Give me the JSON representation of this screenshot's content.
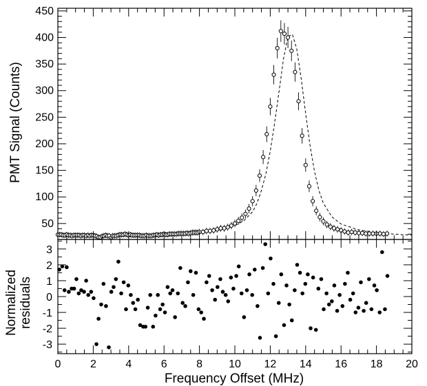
{
  "chart_data": [
    {
      "type": "scatter",
      "ylabel": "PMT Signal (Counts)",
      "xlim": [
        0,
        20
      ],
      "ylim": [
        20,
        455
      ],
      "yticks": [
        50,
        100,
        150,
        200,
        250,
        300,
        350,
        400,
        450
      ],
      "grid": false,
      "legend": "none",
      "series": [
        {
          "marker": "open-circle-with-errorbars",
          "x": [
            0.0,
            0.1,
            0.2,
            0.3,
            0.4,
            0.5,
            0.6,
            0.7,
            0.8,
            0.9,
            1.0,
            1.1,
            1.2,
            1.3,
            1.4,
            1.5,
            1.6,
            1.7,
            1.8,
            1.9,
            2.0,
            2.1,
            2.2,
            2.3,
            2.4,
            2.5,
            2.6,
            2.7,
            2.8,
            2.9,
            3.0,
            3.1,
            3.2,
            3.3,
            3.4,
            3.5,
            3.6,
            3.7,
            3.8,
            3.9,
            4.0,
            4.1,
            4.2,
            4.3,
            4.4,
            4.5,
            4.6,
            4.7,
            4.8,
            4.9,
            5.0,
            5.1,
            5.2,
            5.3,
            5.4,
            5.5,
            5.6,
            5.7,
            5.8,
            5.9,
            6.0,
            6.1,
            6.2,
            6.3,
            6.4,
            6.5,
            6.6,
            6.7,
            6.8,
            6.9,
            7.0,
            7.1,
            7.2,
            7.3,
            7.4,
            7.5,
            7.6,
            7.7,
            7.8,
            7.9,
            8.0,
            8.2,
            8.4,
            8.6,
            8.8,
            9.0,
            9.2,
            9.4,
            9.6,
            9.8,
            10.0,
            10.2,
            10.4,
            10.6,
            10.8,
            11.0,
            11.2,
            11.4,
            11.6,
            11.8,
            12.0,
            12.2,
            12.4,
            12.6,
            12.8,
            13.0,
            13.2,
            13.4,
            13.6,
            13.8,
            14.0,
            14.2,
            14.4,
            14.6,
            14.8,
            15.0,
            15.2,
            15.4,
            15.6,
            15.8,
            16.0,
            16.2,
            16.4,
            16.6,
            16.8,
            17.0,
            17.2,
            17.4,
            17.6,
            17.8,
            18.0,
            18.2,
            18.4,
            18.6
          ],
          "y": [
            29,
            29,
            29,
            28,
            28,
            29,
            28,
            28,
            27,
            28,
            28,
            28,
            28,
            27,
            28,
            28,
            27,
            28,
            27,
            28,
            28,
            27,
            26,
            24,
            24,
            26,
            27,
            28,
            27,
            27,
            23,
            27,
            27,
            27,
            28,
            29,
            29,
            29,
            30,
            29,
            28,
            29,
            28,
            28,
            28,
            28,
            28,
            27,
            27,
            27,
            28,
            27,
            27,
            27,
            28,
            28,
            29,
            28,
            29,
            29,
            30,
            29,
            29,
            30,
            30,
            30,
            30,
            30,
            31,
            31,
            31,
            31,
            31,
            32,
            31,
            32,
            33,
            33,
            33,
            33,
            34,
            34,
            36,
            36,
            37,
            39,
            41,
            41,
            43,
            46,
            50,
            55,
            61,
            68,
            78,
            92,
            112,
            140,
            175,
            218,
            270,
            330,
            380,
            412,
            407,
            400,
            375,
            335,
            280,
            215,
            160,
            120,
            92,
            74,
            62,
            54,
            48,
            44,
            41,
            39,
            37,
            35,
            33,
            34,
            33,
            32,
            32,
            31,
            31,
            31,
            31,
            31,
            30,
            31
          ]
        },
        {
          "line_style": "dashed",
          "x": [
            0,
            2,
            4,
            6,
            7,
            8,
            9,
            9.5,
            10,
            10.5,
            11,
            11.25,
            11.5,
            11.75,
            12,
            12.25,
            12.5,
            12.75,
            13,
            13.25,
            13.5,
            13.75,
            14,
            14.25,
            14.5,
            14.75,
            15,
            15.5,
            16,
            17,
            18,
            19,
            20
          ],
          "y": [
            27,
            27.5,
            28,
            29.5,
            31,
            33,
            37,
            40,
            46,
            55,
            72,
            88,
            112,
            143,
            186,
            240,
            299,
            360,
            402,
            406,
            378,
            322,
            257,
            196,
            148,
            112,
            88,
            62,
            49,
            38,
            33,
            30,
            28
          ]
        }
      ]
    },
    {
      "type": "scatter",
      "ylabel": "Normalized residuals",
      "xlabel": "Frequency Offset (MHz)",
      "xlim": [
        0,
        20
      ],
      "ylim": [
        -3.6,
        3.6
      ],
      "xticks": [
        0,
        2,
        4,
        6,
        8,
        10,
        12,
        14,
        16,
        18,
        20
      ],
      "yticks": [
        -3,
        -2,
        -1,
        0,
        1,
        2,
        3
      ],
      "grid": false,
      "legend": "none",
      "series": [
        {
          "marker": "filled-circle",
          "x": [
            0.08,
            0.25,
            0.38,
            0.5,
            0.62,
            0.78,
            0.92,
            1.05,
            1.18,
            1.32,
            1.48,
            1.6,
            1.72,
            1.88,
            2.02,
            2.18,
            2.3,
            2.45,
            2.58,
            2.72,
            2.88,
            3.02,
            3.15,
            3.28,
            3.42,
            3.58,
            3.72,
            3.85,
            3.98,
            4.12,
            4.25,
            4.38,
            4.52,
            4.65,
            4.82,
            4.95,
            5.08,
            5.22,
            5.38,
            5.52,
            5.65,
            5.78,
            5.92,
            6.05,
            6.2,
            6.35,
            6.48,
            6.62,
            6.78,
            6.92,
            7.05,
            7.2,
            7.35,
            7.5,
            7.65,
            7.8,
            7.95,
            8.1,
            8.25,
            8.4,
            8.55,
            8.72,
            8.88,
            9.02,
            9.18,
            9.32,
            9.48,
            9.62,
            9.78,
            9.92,
            10.08,
            10.22,
            10.38,
            10.52,
            10.68,
            10.82,
            10.98,
            11.12,
            11.28,
            11.42,
            11.58,
            11.72,
            11.88,
            12.02,
            12.18,
            12.32,
            12.48,
            12.62,
            12.78,
            12.92,
            13.08,
            13.22,
            13.38,
            13.52,
            13.68,
            13.82,
            13.98,
            14.12,
            14.28,
            14.42,
            14.58,
            14.72,
            14.88,
            15.02,
            15.18,
            15.32,
            15.48,
            15.62,
            15.78,
            15.92,
            16.08,
            16.22,
            16.38,
            16.52,
            16.68,
            16.82,
            16.98,
            17.12,
            17.28,
            17.42,
            17.58,
            17.72,
            17.88,
            18.02,
            18.18,
            18.32,
            18.48,
            18.62
          ],
          "y": [
            1.7,
            1.9,
            0.4,
            1.85,
            0.3,
            0.5,
            0.5,
            1.1,
            0.2,
            0.4,
            0.3,
            1.0,
            0.1,
            0.3,
            -0.1,
            -3.0,
            -1.4,
            -0.5,
            0.8,
            -0.6,
            -3.2,
            0.3,
            0.6,
            1.1,
            2.2,
            0.2,
            0.9,
            -0.8,
            0.7,
            0.1,
            -0.4,
            -0.8,
            -0.2,
            -1.8,
            -1.9,
            -1.9,
            -0.7,
            0.1,
            -1.9,
            -1.2,
            0.1,
            -0.8,
            -0.5,
            -1.0,
            0.6,
            0.2,
            0.4,
            -1.3,
            0.2,
            1.8,
            -0.4,
            -0.6,
            0.9,
            1.6,
            0.1,
            1.5,
            -0.8,
            -1.0,
            -1.4,
            0.9,
            1.3,
            0.4,
            -0.2,
            0.6,
            1.1,
            0.3,
            0.1,
            -0.3,
            1.2,
            0.5,
            1.3,
            1.9,
            0.2,
            -1.3,
            0.4,
            1.4,
            0.1,
            1.7,
            -0.6,
            -2.6,
            1.8,
            3.3,
            0.2,
            2.4,
            0.8,
            -2.5,
            -0.4,
            1.4,
            -1.8,
            0.7,
            -0.5,
            -1.5,
            0.4,
            2.0,
            1.5,
            0.2,
            0.8,
            1.4,
            -2.0,
            1.2,
            -2.1,
            0.5,
            1.1,
            -0.8,
            0.2,
            -0.5,
            -0.3,
            0.7,
            -0.9,
            0.1,
            -0.6,
            0.8,
            1.5,
            -0.2,
            0.2,
            -1.0,
            -0.7,
            0.9,
            -0.9,
            -0.4,
            1.1,
            -0.8,
            0.7,
            0.4,
            -1.0,
            2.8,
            -0.8,
            1.3
          ]
        }
      ]
    }
  ]
}
